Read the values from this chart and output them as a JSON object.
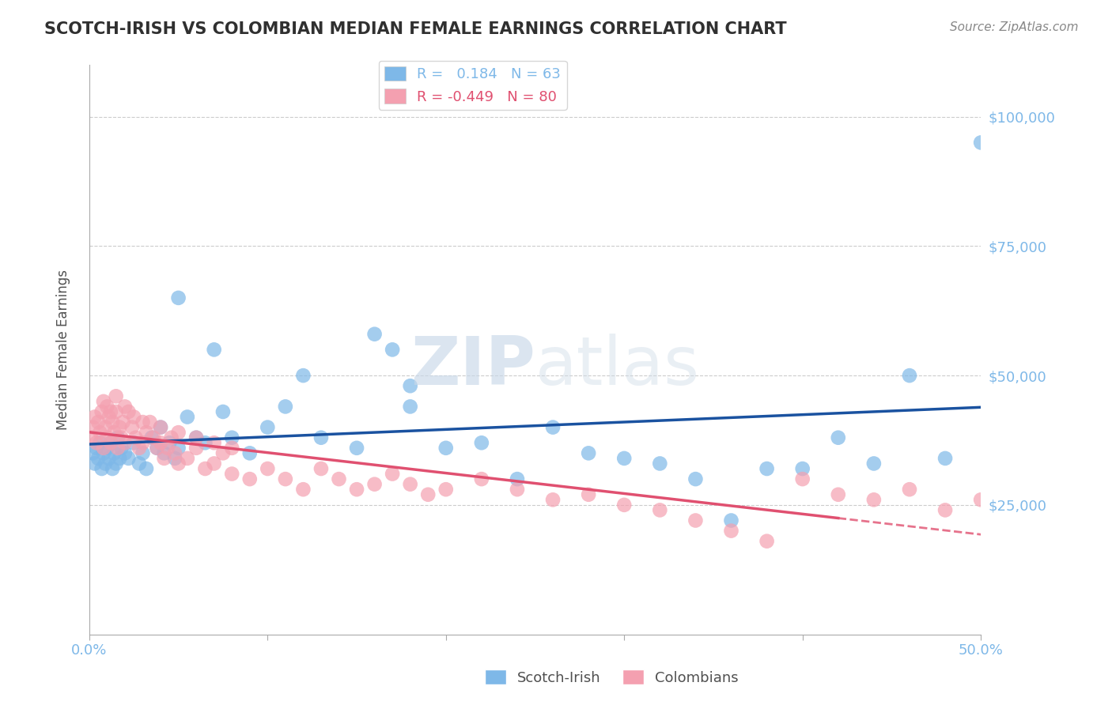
{
  "title": "SCOTCH-IRISH VS COLOMBIAN MEDIAN FEMALE EARNINGS CORRELATION CHART",
  "source": "Source: ZipAtlas.com",
  "ylabel": "Median Female Earnings",
  "xlim": [
    0.0,
    0.5
  ],
  "ylim": [
    0,
    110000
  ],
  "yticks": [
    0,
    25000,
    50000,
    75000,
    100000
  ],
  "ytick_labels": [
    "",
    "$25,000",
    "$50,000",
    "$75,000",
    "$100,000"
  ],
  "xticks": [
    0.0,
    0.1,
    0.2,
    0.3,
    0.4,
    0.5
  ],
  "xtick_labels": [
    "0.0%",
    "",
    "",
    "",
    "",
    "50.0%"
  ],
  "scotch_irish_R": 0.184,
  "scotch_irish_N": 63,
  "colombian_R": -0.449,
  "colombian_N": 80,
  "blue_color": "#7eb8e8",
  "pink_color": "#f4a0b0",
  "blue_line_color": "#1a52a0",
  "pink_line_color": "#e05070",
  "watermark_zip_color": "#c8d8e8",
  "watermark_atlas_color": "#d0dce8",
  "title_color": "#303030",
  "axis_color": "#7eb8e8",
  "scotch_irish_x": [
    0.002,
    0.003,
    0.004,
    0.005,
    0.006,
    0.007,
    0.008,
    0.009,
    0.01,
    0.011,
    0.012,
    0.013,
    0.014,
    0.015,
    0.016,
    0.017,
    0.018,
    0.02,
    0.022,
    0.025,
    0.028,
    0.03,
    0.032,
    0.035,
    0.038,
    0.04,
    0.042,
    0.045,
    0.048,
    0.05,
    0.055,
    0.06,
    0.065,
    0.07,
    0.075,
    0.08,
    0.09,
    0.1,
    0.11,
    0.12,
    0.13,
    0.15,
    0.16,
    0.17,
    0.18,
    0.2,
    0.22,
    0.24,
    0.26,
    0.28,
    0.3,
    0.32,
    0.34,
    0.36,
    0.38,
    0.4,
    0.42,
    0.44,
    0.46,
    0.48,
    0.5,
    0.05,
    0.18
  ],
  "scotch_irish_y": [
    35000,
    33000,
    36000,
    34000,
    37000,
    32000,
    35000,
    33000,
    36000,
    34000,
    37000,
    32000,
    35000,
    33000,
    38000,
    34000,
    36000,
    35000,
    34000,
    37000,
    33000,
    35000,
    32000,
    38000,
    36000,
    40000,
    35000,
    37000,
    34000,
    36000,
    42000,
    38000,
    37000,
    55000,
    43000,
    38000,
    35000,
    40000,
    44000,
    50000,
    38000,
    36000,
    58000,
    55000,
    44000,
    36000,
    37000,
    30000,
    40000,
    35000,
    34000,
    33000,
    30000,
    22000,
    32000,
    32000,
    38000,
    33000,
    50000,
    34000,
    95000,
    65000,
    48000
  ],
  "colombian_x": [
    0.001,
    0.002,
    0.003,
    0.004,
    0.005,
    0.006,
    0.007,
    0.008,
    0.009,
    0.01,
    0.011,
    0.012,
    0.013,
    0.014,
    0.015,
    0.016,
    0.017,
    0.018,
    0.019,
    0.02,
    0.022,
    0.024,
    0.026,
    0.028,
    0.03,
    0.032,
    0.034,
    0.036,
    0.038,
    0.04,
    0.042,
    0.044,
    0.046,
    0.048,
    0.05,
    0.055,
    0.06,
    0.065,
    0.07,
    0.075,
    0.08,
    0.09,
    0.1,
    0.11,
    0.12,
    0.13,
    0.14,
    0.15,
    0.16,
    0.17,
    0.18,
    0.19,
    0.2,
    0.22,
    0.24,
    0.26,
    0.28,
    0.3,
    0.32,
    0.34,
    0.36,
    0.38,
    0.4,
    0.42,
    0.44,
    0.46,
    0.48,
    0.5,
    0.01,
    0.012,
    0.015,
    0.008,
    0.02,
    0.025,
    0.03,
    0.04,
    0.05,
    0.06,
    0.07,
    0.08
  ],
  "colombian_y": [
    38000,
    40000,
    42000,
    37000,
    41000,
    39000,
    43000,
    36000,
    40000,
    38000,
    42000,
    37000,
    41000,
    39000,
    43000,
    36000,
    40000,
    38000,
    41000,
    37000,
    43000,
    40000,
    38000,
    36000,
    37000,
    39000,
    41000,
    38000,
    36000,
    37000,
    34000,
    36000,
    38000,
    35000,
    33000,
    34000,
    36000,
    32000,
    33000,
    35000,
    31000,
    30000,
    32000,
    30000,
    28000,
    32000,
    30000,
    28000,
    29000,
    31000,
    29000,
    27000,
    28000,
    30000,
    28000,
    26000,
    27000,
    25000,
    24000,
    22000,
    20000,
    18000,
    30000,
    27000,
    26000,
    28000,
    24000,
    26000,
    44000,
    43000,
    46000,
    45000,
    44000,
    42000,
    41000,
    40000,
    39000,
    38000,
    37000,
    36000
  ]
}
